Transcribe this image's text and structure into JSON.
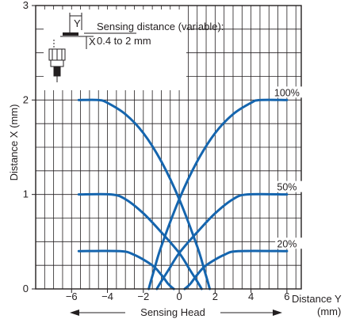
{
  "colors": {
    "curve": "#1565ae",
    "grid": "#231f20",
    "background": "#ffffff"
  },
  "annotation": {
    "line1": "Sensing distance (variable):",
    "line2": "0.4 to 2 mm",
    "label_y": "Y",
    "label_x": "X"
  },
  "ylabel": "Distance X (mm)",
  "xlabel_line1": "Distance Y",
  "xlabel_line2": "(mm)",
  "footer": "Sensing Head",
  "chart_data": {
    "type": "line",
    "xlabel": "Distance Y (mm)",
    "ylabel": "Distance X (mm)",
    "xlim": [
      -8,
      6.8
    ],
    "ylim": [
      0,
      3
    ],
    "xticks": [
      -6,
      -4,
      -2,
      0,
      2,
      4,
      6
    ],
    "yticks": [
      0,
      1,
      2,
      3
    ],
    "grid": true,
    "annotations": [
      "Sensing distance (variable):",
      "0.4 to 2 mm",
      "Sensing Head"
    ],
    "series": [
      {
        "name": "100%",
        "group": "100%",
        "x": [
          -5.6,
          -4.5,
          -4.0,
          -3.0,
          -2.0,
          -1.0,
          0.0,
          1.0,
          1.4,
          1.6,
          1.7
        ],
        "y": [
          2.0,
          2.0,
          1.97,
          1.85,
          1.65,
          1.35,
          0.95,
          0.45,
          0.2,
          0.07,
          0.0
        ]
      },
      {
        "group": "100%",
        "x": [
          -1.7,
          -1.6,
          -1.4,
          -1.0,
          0.0,
          1.0,
          2.0,
          3.0,
          4.0,
          4.5,
          6.0
        ],
        "y": [
          0.0,
          0.07,
          0.2,
          0.45,
          0.95,
          1.35,
          1.65,
          1.85,
          1.97,
          2.0,
          2.0
        ]
      },
      {
        "name": "50%",
        "group": "50%",
        "x": [
          -5.6,
          -3.8,
          -3.0,
          -2.0,
          -1.0,
          0.0,
          0.6,
          1.0,
          1.25
        ],
        "y": [
          1.0,
          1.0,
          0.95,
          0.8,
          0.6,
          0.38,
          0.2,
          0.08,
          0.0
        ]
      },
      {
        "group": "50%",
        "x": [
          -1.25,
          -1.0,
          -0.6,
          0.0,
          1.0,
          2.0,
          3.0,
          3.8,
          6.0
        ],
        "y": [
          0.0,
          0.08,
          0.2,
          0.38,
          0.6,
          0.8,
          0.95,
          1.0,
          1.0
        ]
      },
      {
        "name": "20%",
        "group": "20%",
        "x": [
          -5.6,
          -3.3,
          -2.5,
          -1.5,
          -1.0,
          -0.6,
          -0.3
        ],
        "y": [
          0.4,
          0.4,
          0.36,
          0.25,
          0.15,
          0.05,
          0.0
        ]
      },
      {
        "group": "20%",
        "x": [
          0.3,
          0.6,
          1.0,
          1.5,
          2.5,
          3.3,
          6.0
        ],
        "y": [
          0.0,
          0.05,
          0.15,
          0.25,
          0.36,
          0.4,
          0.4
        ]
      }
    ],
    "series_labels": [
      "100%",
      "50%",
      "20%"
    ]
  }
}
